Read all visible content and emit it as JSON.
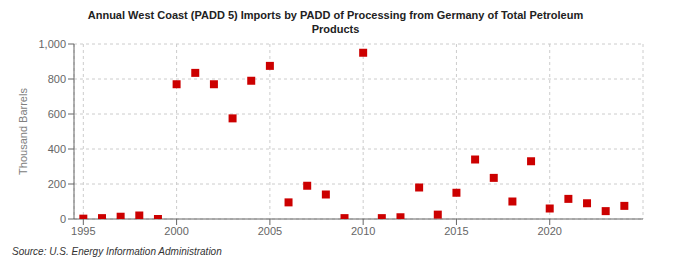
{
  "chart_data": {
    "type": "scatter",
    "title": "Annual West Coast (PADD 5) Imports by PADD of Processing from Germany of Total Petroleum\nProducts",
    "ylabel": "Thousand Barrels",
    "source": "Source: U.S. Energy Information Administration",
    "x": [
      1995,
      1996,
      1997,
      1998,
      1999,
      2000,
      2001,
      2002,
      2003,
      2004,
      2005,
      2006,
      2007,
      2008,
      2009,
      2010,
      2011,
      2012,
      2013,
      2014,
      2015,
      2016,
      2017,
      2018,
      2019,
      2020,
      2021,
      2022,
      2023,
      2024
    ],
    "values": [
      2,
      5,
      13,
      20,
      0,
      770,
      835,
      770,
      575,
      790,
      875,
      95,
      190,
      140,
      5,
      950,
      5,
      10,
      180,
      25,
      150,
      340,
      235,
      100,
      330,
      60,
      115,
      90,
      45,
      75
    ],
    "color": "#cc0000",
    "marker": "square",
    "xlim": [
      1994.5,
      2025
    ],
    "xticks": [
      1995,
      2000,
      2005,
      2010,
      2015,
      2020
    ],
    "ylim": [
      0,
      1000
    ],
    "yticks": [
      0,
      200,
      400,
      600,
      800,
      {
        "value": 1000,
        "label": "1,000"
      }
    ],
    "grid": true
  }
}
